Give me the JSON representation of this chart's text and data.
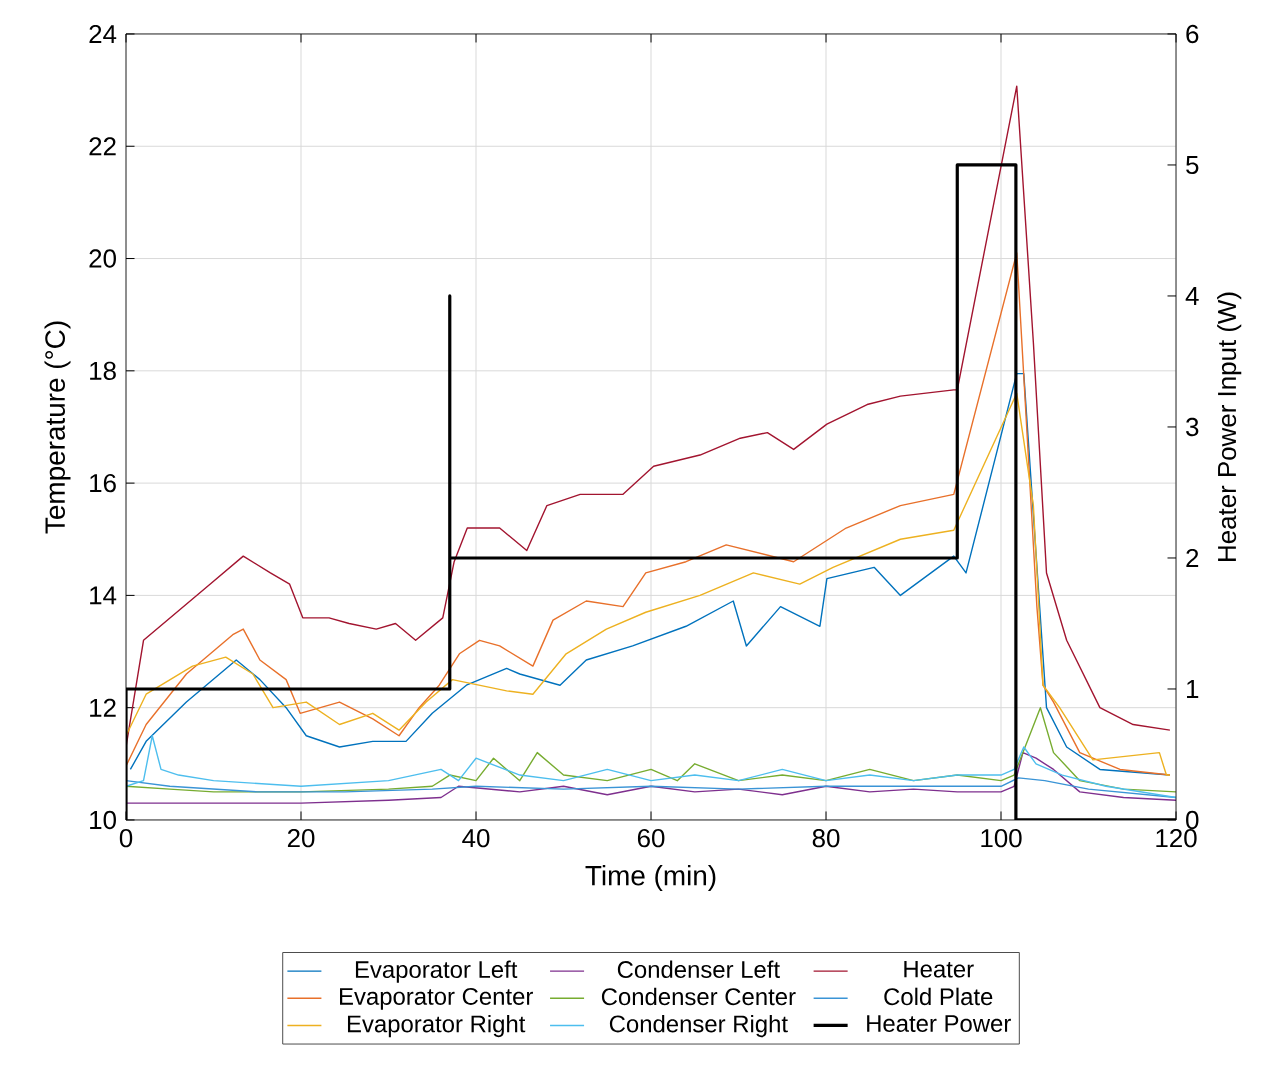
{
  "chart_data": {
    "type": "line",
    "xlabel": "Time (min)",
    "ylabel": "Temperature (°C)",
    "y2label": "Heater Power Input (W)",
    "xlim": [
      0,
      120
    ],
    "xticks": [
      0,
      20,
      40,
      60,
      80,
      100,
      120
    ],
    "ylim": [
      10,
      24
    ],
    "yticks": [
      10,
      12,
      14,
      16,
      18,
      20,
      22,
      24
    ],
    "y2lim": [
      0,
      6
    ],
    "y2ticks": [
      0,
      1,
      2,
      3,
      4,
      5,
      6
    ],
    "grid": true,
    "legend": "bottom",
    "series": [
      {
        "name": "Evaporator Left",
        "color": "#0072bd",
        "x": [
          0.5,
          2.3,
          6.9,
          12.6,
          15.3,
          18.3,
          20.6,
          24.4,
          28.2,
          32,
          35,
          38.9,
          43.5,
          45,
          49.6,
          52.6,
          57.9,
          64,
          69.4,
          70.9,
          74.8,
          79.3,
          80.1,
          85.5,
          88.5,
          94.6,
          96,
          101.8,
          102.6,
          105.2,
          107.5,
          111.3,
          119.3
        ],
        "values": [
          10.9,
          11.4,
          12.1,
          12.85,
          12.5,
          12.0,
          11.5,
          11.3,
          11.4,
          11.4,
          11.9,
          12.4,
          12.7,
          12.6,
          12.4,
          12.85,
          13.1,
          13.45,
          13.9,
          13.1,
          13.8,
          13.45,
          14.3,
          14.5,
          14.0,
          14.7,
          14.4,
          17.95,
          17.95,
          12.0,
          11.3,
          10.9,
          10.8
        ]
      },
      {
        "name": "Condenser Left",
        "color": "#7e2f8e",
        "x": [
          0,
          5,
          10,
          20,
          30,
          36,
          38,
          45,
          50,
          55,
          60,
          65,
          70,
          75,
          80,
          85,
          90,
          95,
          100,
          101.5,
          102.5,
          104,
          106,
          109,
          114,
          120
        ],
        "values": [
          10.3,
          10.3,
          10.3,
          10.3,
          10.35,
          10.4,
          10.6,
          10.5,
          10.6,
          10.45,
          10.6,
          10.5,
          10.55,
          10.45,
          10.6,
          10.5,
          10.55,
          10.5,
          10.5,
          10.6,
          11.2,
          11.1,
          10.9,
          10.5,
          10.4,
          10.35
        ]
      },
      {
        "name": "Heater",
        "color": "#a2142f",
        "x": [
          0,
          2,
          5.8,
          9.6,
          13.4,
          16.5,
          18.7,
          20.2,
          23.2,
          25.5,
          28.6,
          30.8,
          33.1,
          36.2,
          37.5,
          39,
          42.7,
          45.8,
          48.1,
          51.9,
          56.8,
          60.3,
          65.6,
          70.2,
          73.3,
          76.3,
          80.1,
          84.7,
          88.5,
          94.6,
          95,
          101.8,
          103.7,
          105.2,
          107.5,
          111.3,
          115.1,
          119.3
        ],
        "values": [
          11.3,
          13.2,
          13.7,
          14.2,
          14.7,
          14.4,
          14.2,
          13.6,
          13.6,
          13.5,
          13.4,
          13.5,
          13.2,
          13.6,
          14.6,
          15.2,
          15.2,
          14.8,
          15.6,
          15.8,
          15.8,
          16.3,
          16.5,
          16.8,
          16.9,
          16.6,
          17.05,
          17.4,
          17.55,
          17.66,
          17.66,
          23.07,
          18.5,
          14.4,
          13.2,
          12.0,
          11.7,
          11.6
        ]
      },
      {
        "name": "Evaporator Center",
        "color": "#e8702a",
        "x": [
          0,
          2.3,
          6.9,
          12.2,
          13.4,
          15.3,
          18.3,
          19.9,
          24.4,
          28.2,
          31.2,
          33.5,
          35.8,
          38.1,
          40.4,
          42.7,
          46.5,
          48.8,
          52.6,
          56.8,
          59.4,
          64,
          68.6,
          76.3,
          82.3,
          88.5,
          94.6,
          101.8,
          104.1,
          104.8,
          106,
          109,
          113.6,
          119.3
        ],
        "values": [
          10.96,
          11.7,
          12.6,
          13.3,
          13.4,
          12.85,
          12.5,
          11.9,
          12.1,
          11.8,
          11.5,
          12.0,
          12.4,
          12.96,
          13.2,
          13.1,
          12.74,
          13.56,
          13.9,
          13.8,
          14.4,
          14.6,
          14.9,
          14.6,
          15.2,
          15.6,
          15.8,
          20.1,
          13.8,
          12.4,
          12.1,
          11.2,
          10.9,
          10.8
        ]
      },
      {
        "name": "Condenser Center",
        "color": "#77ac30",
        "x": [
          0,
          5,
          10,
          20,
          30,
          35,
          37,
          40,
          42,
          45,
          47,
          50,
          55,
          60,
          63,
          65,
          70,
          75,
          80,
          85,
          90,
          95,
          100,
          101.5,
          103,
          104.5,
          106,
          109,
          114,
          120
        ],
        "values": [
          10.6,
          10.55,
          10.5,
          10.5,
          10.55,
          10.6,
          10.8,
          10.7,
          11.1,
          10.7,
          11.2,
          10.8,
          10.7,
          10.9,
          10.7,
          11.0,
          10.7,
          10.8,
          10.7,
          10.9,
          10.7,
          10.8,
          10.7,
          10.8,
          11.4,
          12.0,
          11.2,
          10.7,
          10.55,
          10.5
        ]
      },
      {
        "name": "Cold Plate",
        "color": "#3a94d6",
        "x": [
          0,
          5,
          15,
          25,
          35,
          40,
          50,
          60,
          70,
          80,
          90,
          100,
          102,
          105,
          110,
          120
        ],
        "values": [
          10.7,
          10.6,
          10.5,
          10.5,
          10.55,
          10.6,
          10.55,
          10.6,
          10.55,
          10.6,
          10.6,
          10.6,
          10.75,
          10.7,
          10.55,
          10.4
        ]
      },
      {
        "name": "Evaporator Right",
        "color": "#edb120",
        "x": [
          0,
          2.3,
          7.6,
          11.4,
          14.5,
          16.8,
          20.6,
          24.4,
          28.2,
          31.2,
          34.3,
          37.3,
          43.5,
          46.5,
          50.3,
          54.9,
          59.4,
          65.6,
          71.7,
          77,
          80.8,
          88.5,
          94.6,
          101.8,
          103.7,
          104.8,
          106.7,
          110.5,
          118.1,
          118.9,
          119.3
        ],
        "values": [
          11.5,
          12.24,
          12.74,
          12.9,
          12.6,
          12.0,
          12.1,
          11.7,
          11.9,
          11.6,
          12.1,
          12.5,
          12.3,
          12.24,
          12.96,
          13.4,
          13.7,
          14.0,
          14.4,
          14.2,
          14.5,
          15.0,
          15.16,
          17.6,
          15.6,
          12.4,
          12.0,
          11.07,
          11.2,
          10.8,
          10.8
        ]
      },
      {
        "name": "Condenser Right",
        "color": "#4dbeee",
        "x": [
          0,
          2,
          3,
          4,
          6,
          10,
          20,
          30,
          36,
          38,
          40,
          45,
          50,
          55,
          60,
          65,
          70,
          75,
          80,
          85,
          90,
          95,
          100,
          101.5,
          102.6,
          104,
          107,
          112,
          120
        ],
        "values": [
          10.6,
          10.7,
          11.5,
          10.9,
          10.8,
          10.7,
          10.6,
          10.7,
          10.9,
          10.7,
          11.1,
          10.8,
          10.7,
          10.9,
          10.7,
          10.8,
          10.7,
          10.9,
          10.7,
          10.8,
          10.7,
          10.8,
          10.8,
          10.9,
          11.3,
          11.0,
          10.8,
          10.6,
          10.4
        ]
      },
      {
        "name": "Heater Power",
        "color": "#000000",
        "axis": "y2",
        "x": [
          0,
          0,
          37,
          37,
          37,
          95,
          95,
          101.7,
          101.7,
          120
        ],
        "values": [
          0,
          1,
          1,
          4,
          2,
          2,
          5,
          5,
          0,
          0
        ]
      }
    ]
  }
}
